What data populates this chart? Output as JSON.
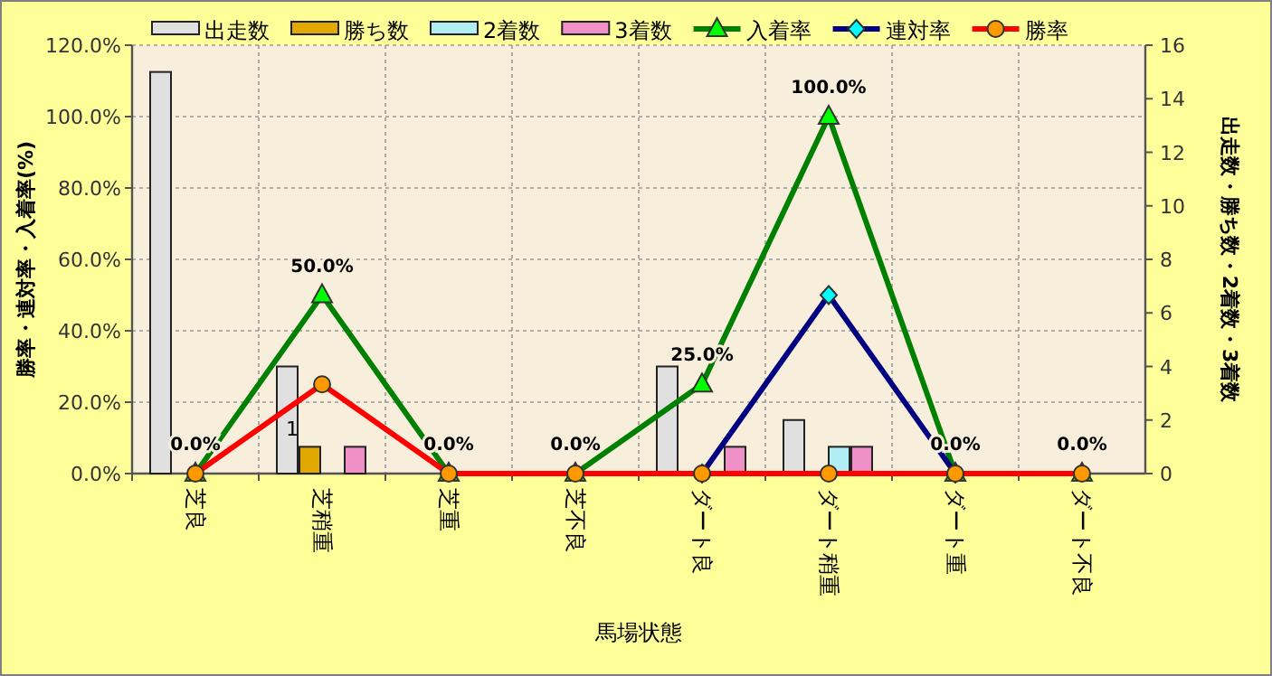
{
  "chart_data": {
    "type": "bar",
    "categories": [
      "芝良",
      "芝稍重",
      "芝重",
      "芝不良",
      "ダート良",
      "ダート稍重",
      "ダート重",
      "ダート不良"
    ],
    "xlabel": "馬場状態",
    "ylabel": "勝率・連対率・入着率(%)",
    "y2label": "出走数・勝ち数・2着数・3着数",
    "ylim": [
      0,
      120
    ],
    "yticks": [
      {
        "value": 0,
        "label": "0.0%"
      },
      {
        "value": 20,
        "label": "20.0%"
      },
      {
        "value": 40,
        "label": "40.0%"
      },
      {
        "value": 60,
        "label": "60.0%"
      },
      {
        "value": 80,
        "label": "80.0%"
      },
      {
        "value": 100,
        "label": "100.0%"
      },
      {
        "value": 120,
        "label": "120.0%"
      }
    ],
    "y2lim": [
      0,
      16
    ],
    "y2ticks": [
      0,
      2,
      4,
      6,
      8,
      10,
      12,
      14,
      16
    ],
    "grid": true,
    "legend": "top",
    "series": [
      {
        "name": "出走数",
        "axis": "y2",
        "color": "#e0e0e0",
        "values": [
          15,
          4,
          0,
          0,
          4,
          2,
          0,
          0
        ]
      },
      {
        "name": "勝ち数",
        "axis": "y2",
        "color": "#e0a800",
        "values": [
          0,
          1,
          0,
          0,
          0,
          0,
          0,
          0
        ],
        "value_labels": [
          null,
          "1",
          null,
          null,
          null,
          null,
          null,
          null
        ]
      },
      {
        "name": "2着数",
        "axis": "y2",
        "color": "#b0eef4",
        "values": [
          0,
          0,
          0,
          0,
          0,
          1,
          0,
          0
        ]
      },
      {
        "name": "3着数",
        "axis": "y2",
        "color": "#f090c8",
        "values": [
          0,
          1,
          0,
          0,
          1,
          1,
          0,
          0
        ]
      },
      {
        "name": "入着率",
        "type": "line",
        "color": "#008000",
        "marker": "triangle",
        "colors": [
          "#00ff00",
          "#00ff00",
          "#00ff00",
          "#00ff00",
          "#00ff00",
          "#00ff00",
          "#00ff00",
          "#00ff00"
        ],
        "values": [
          0,
          50,
          0,
          0,
          25,
          100,
          0,
          0
        ],
        "value_labels": [
          "0.0%",
          "50.0%",
          "0.0%",
          "0.0%",
          "25.0%",
          "100.0%",
          "0.0%",
          "0.0%"
        ]
      },
      {
        "name": "連対率",
        "type": "line",
        "color": "#000080",
        "marker": "diamond",
        "colors": [
          null,
          null,
          null,
          null,
          "#00ffff",
          "#00ffff",
          "#00ffff",
          null
        ],
        "values": [
          null,
          null,
          null,
          null,
          0,
          50,
          0,
          null
        ]
      },
      {
        "name": "勝率",
        "type": "line",
        "color": "#ff0000",
        "marker": "circle",
        "colors": [
          "#ff9900",
          "#ff9900",
          "#ff9900",
          "#ff9900",
          "#ff9900",
          "#ff9900",
          "#ff9900",
          "#ff9900"
        ],
        "values": [
          0,
          25,
          0,
          0,
          0,
          0,
          0,
          0
        ]
      }
    ]
  }
}
